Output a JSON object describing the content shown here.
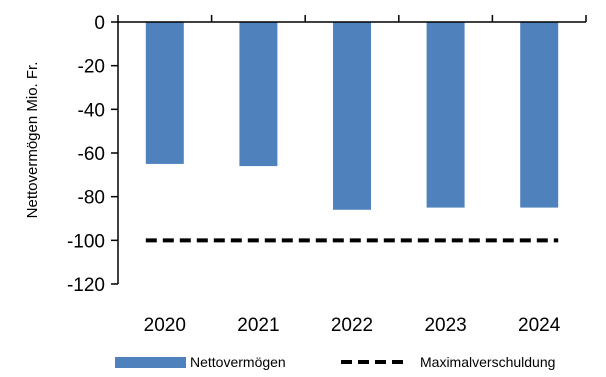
{
  "chart_data": {
    "type": "bar",
    "title": "",
    "xlabel": "",
    "ylabel": "Nettovermögen Mio. Fr.",
    "categories": [
      "2020",
      "2021",
      "2022",
      "2023",
      "2024"
    ],
    "series": [
      {
        "name": "Nettovermögen",
        "type": "bar",
        "color": "#4f81bd",
        "values": [
          -65,
          -66,
          -86,
          -85,
          -85
        ]
      },
      {
        "name": "Maximalverschuldung",
        "type": "line",
        "style": "dashed",
        "color": "#000000",
        "values": [
          -100,
          -100,
          -100,
          -100,
          -100
        ]
      }
    ],
    "ylim": [
      -120,
      0
    ],
    "yticks": [
      0,
      -20,
      -40,
      -60,
      -80,
      -100,
      -120
    ],
    "grid": false,
    "legend_position": "bottom"
  }
}
